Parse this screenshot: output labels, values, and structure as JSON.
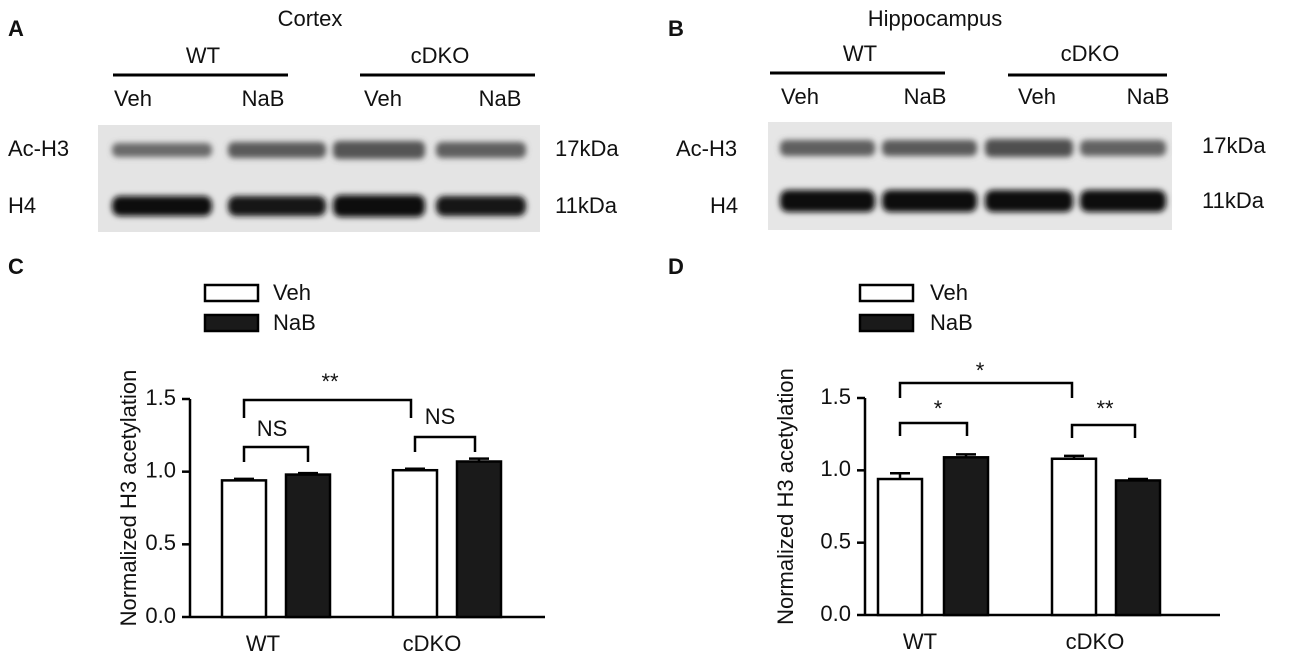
{
  "panels": [
    {
      "letter": "A",
      "blot": {
        "title": "Cortex",
        "groups": [
          "WT",
          "cDKO"
        ],
        "lanes": [
          "Veh",
          "NaB",
          "Veh",
          "NaB"
        ],
        "bands": [
          "Ac-H3",
          "H4"
        ],
        "sizes": [
          "17kDa",
          "11kDa"
        ]
      }
    },
    {
      "letter": "B",
      "blot": {
        "title": "Hippocampus",
        "groups": [
          "WT",
          "cDKO"
        ],
        "lanes": [
          "Veh",
          "NaB",
          "Veh",
          "NaB"
        ],
        "bands": [
          "Ac-H3",
          "H4"
        ],
        "sizes": [
          "17kDa",
          "11kDa"
        ]
      }
    },
    {
      "letter": "C"
    },
    {
      "letter": "D"
    }
  ],
  "chart_data": [
    {
      "type": "bar",
      "y_label": "Normalized H3 acetylation",
      "categories": [
        "WT",
        "cDKO"
      ],
      "series": [
        {
          "name": "Veh",
          "color": "#ffffff",
          "values": [
            0.94,
            1.01
          ],
          "errors": [
            0.01,
            0.01
          ]
        },
        {
          "name": "NaB",
          "color": "#1a1a1a",
          "values": [
            0.98,
            1.07
          ],
          "errors": [
            0.01,
            0.02
          ]
        }
      ],
      "ylim": [
        0,
        1.5
      ],
      "yticks": [
        {
          "value": 0,
          "label": "0.0"
        },
        0.5,
        {
          "value": 1,
          "label": "1.0"
        },
        1.5
      ],
      "annotations": [
        "**",
        "NS",
        "NS"
      ]
    },
    {
      "type": "bar",
      "y_label": "Normalized H3 acetylation",
      "categories": [
        "WT",
        "cDKO"
      ],
      "series": [
        {
          "name": "Veh",
          "color": "#ffffff",
          "values": [
            0.94,
            1.08
          ],
          "errors": [
            0.04,
            0.02
          ]
        },
        {
          "name": "NaB",
          "color": "#1a1a1a",
          "values": [
            1.09,
            0.93
          ],
          "errors": [
            0.02,
            0.01
          ]
        }
      ],
      "ylim": [
        0,
        1.5
      ],
      "yticks": [
        {
          "value": 0,
          "label": "0.0"
        },
        0.5,
        {
          "value": 1,
          "label": "1.0"
        },
        1.5
      ],
      "annotations": [
        "*",
        "*",
        "**"
      ]
    }
  ]
}
